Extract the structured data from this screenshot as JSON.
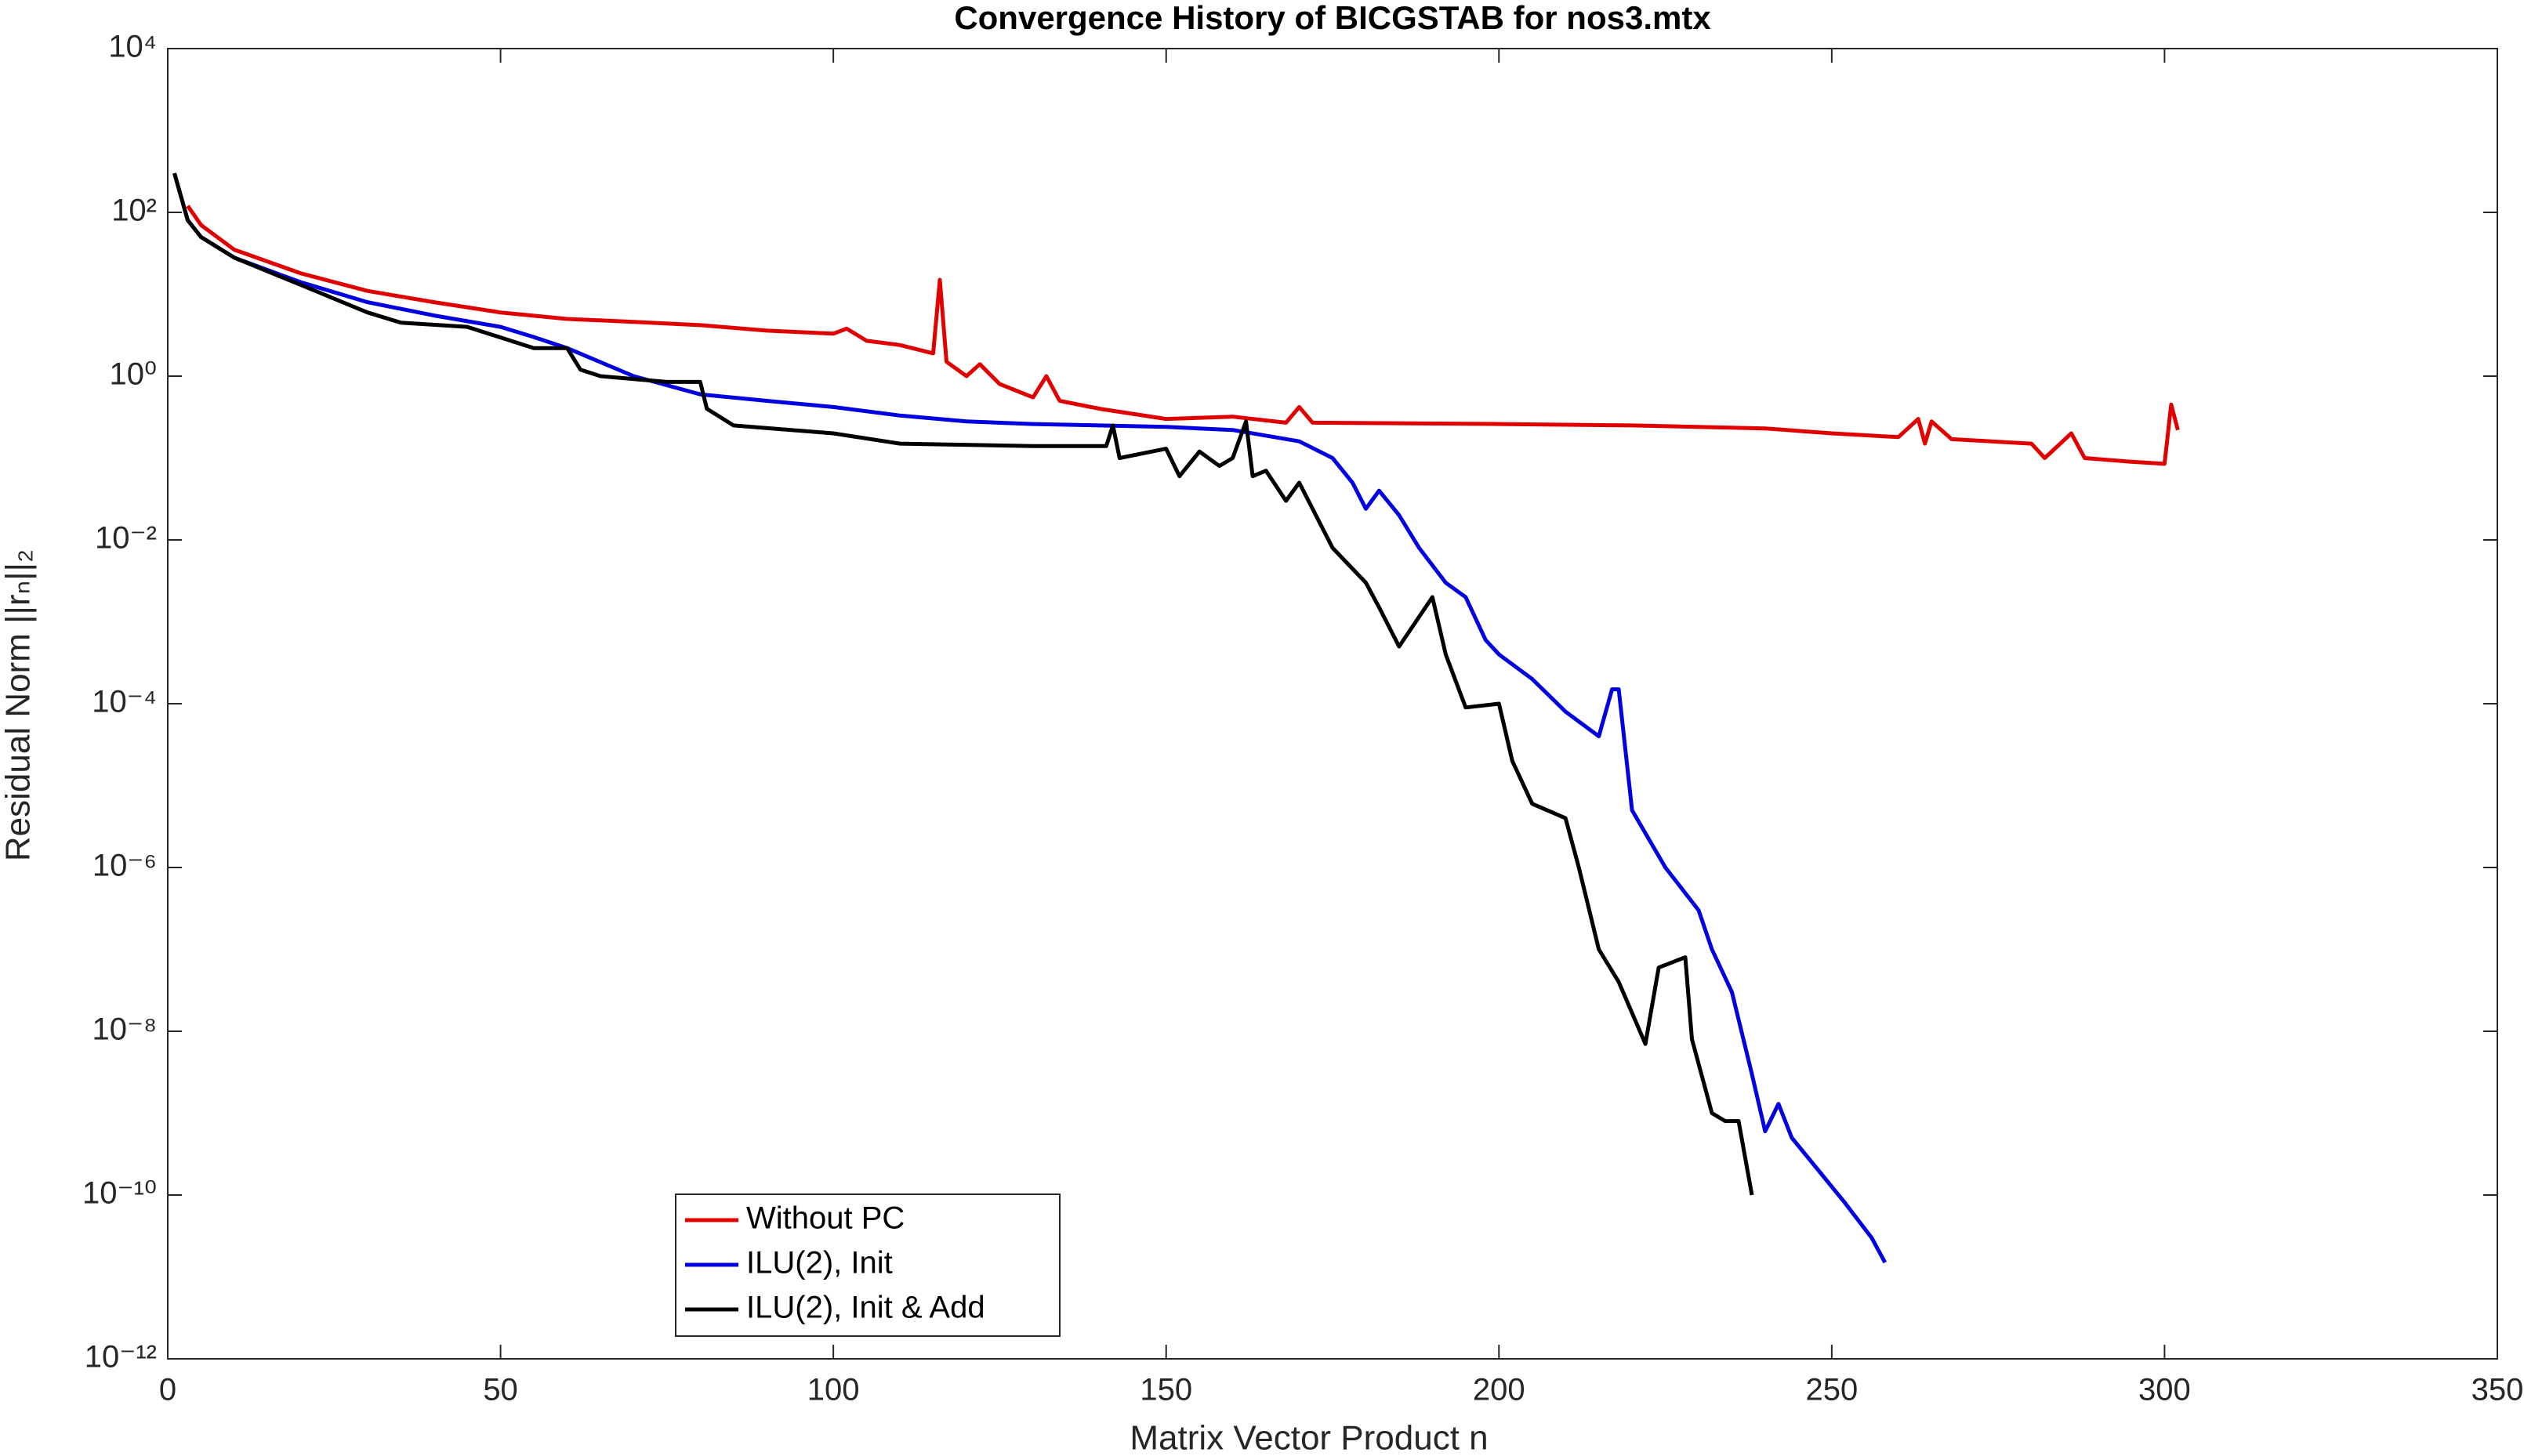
{
  "chart_data": {
    "type": "line",
    "title": "Convergence History of BICGSTAB for nos3.mtx",
    "xlabel": "Matrix Vector Product n",
    "ylabel": "Residual Norm ||rₙ||₂",
    "ylog": true,
    "xlim": [
      0,
      350
    ],
    "xticks": [
      0,
      50,
      100,
      150,
      200,
      250,
      300,
      350
    ],
    "ylim": [
      1e-12,
      10000
    ],
    "yticks": [
      {
        "value": 1e-12,
        "label": "10⁻¹²"
      },
      {
        "value": 1e-10,
        "label": "10⁻¹⁰"
      },
      {
        "value": 1e-08,
        "label": "10⁻⁸"
      },
      {
        "value": 1e-06,
        "label": "10⁻⁶"
      },
      {
        "value": 0.0001,
        "label": "10⁻⁴"
      },
      {
        "value": 0.01,
        "label": "10⁻²"
      },
      {
        "value": 1,
        "label": "10⁰"
      },
      {
        "value": 100,
        "label": "10²"
      },
      {
        "value": 10000,
        "label": "10⁴"
      }
    ],
    "legend": "lower-left",
    "series": [
      {
        "name": "Without PC",
        "color": "#e00000",
        "x": [
          3,
          5,
          10,
          20,
          30,
          40,
          50,
          60,
          70,
          80,
          90,
          100,
          102,
          105,
          110,
          115,
          116,
          117,
          120,
          122,
          125,
          130,
          132,
          134,
          140,
          150,
          160,
          168,
          170,
          172,
          200,
          220,
          240,
          250,
          260,
          263,
          264,
          265,
          268,
          280,
          282,
          286,
          288,
          295,
          300,
          301,
          302
        ],
        "values": [
          120,
          70,
          35,
          18,
          11,
          8,
          6,
          5,
          4.6,
          4.2,
          3.6,
          3.3,
          3.8,
          2.7,
          2.4,
          1.9,
          15,
          1.5,
          1.0,
          1.4,
          0.8,
          0.55,
          1.0,
          0.5,
          0.4,
          0.3,
          0.32,
          0.27,
          0.42,
          0.27,
          0.26,
          0.25,
          0.23,
          0.2,
          0.18,
          0.3,
          0.15,
          0.28,
          0.17,
          0.15,
          0.1,
          0.2,
          0.1,
          0.09,
          0.085,
          0.45,
          0.22
        ]
      },
      {
        "name": "ILU(2), Init",
        "color": "#0000e0",
        "x": [
          1,
          3,
          5,
          10,
          20,
          30,
          40,
          50,
          55,
          60,
          70,
          80,
          90,
          100,
          110,
          120,
          130,
          140,
          150,
          160,
          170,
          175,
          178,
          180,
          182,
          185,
          188,
          192,
          195,
          198,
          200,
          205,
          210,
          215,
          217,
          218,
          220,
          225,
          230,
          232,
          235,
          238,
          240,
          242,
          244,
          248,
          252,
          256,
          258
        ],
        "values": [
          300,
          80,
          50,
          28,
          14,
          8,
          5.5,
          4,
          3,
          2.2,
          1.0,
          0.6,
          0.5,
          0.42,
          0.33,
          0.28,
          0.26,
          0.25,
          0.24,
          0.22,
          0.16,
          0.1,
          0.05,
          0.024,
          0.04,
          0.02,
          0.008,
          0.003,
          0.002,
          0.0006,
          0.0004,
          0.0002,
          8e-05,
          4e-05,
          0.00015,
          0.00015,
          5e-06,
          1e-06,
          3e-07,
          1e-07,
          3e-08,
          3e-09,
          6e-10,
          1.3e-09,
          5e-10,
          2e-10,
          8e-11,
          3e-11,
          1.5e-11
        ]
      },
      {
        "name": "ILU(2), Init & Add",
        "color": "#000000",
        "x": [
          1,
          3,
          5,
          10,
          20,
          30,
          35,
          45,
          55,
          60,
          62,
          65,
          75,
          80,
          81,
          85,
          100,
          110,
          130,
          141,
          142,
          143,
          150,
          152,
          155,
          158,
          160,
          162,
          163,
          165,
          168,
          170,
          175,
          180,
          182,
          185,
          190,
          192,
          195,
          200,
          202,
          205,
          210,
          212,
          215,
          218,
          222,
          224,
          228,
          229,
          232,
          234,
          236,
          238
        ],
        "values": [
          300,
          80,
          50,
          28,
          13,
          6,
          4.5,
          4,
          2.2,
          2.2,
          1.2,
          1.0,
          0.85,
          0.85,
          0.4,
          0.25,
          0.2,
          0.15,
          0.14,
          0.14,
          0.25,
          0.1,
          0.13,
          0.06,
          0.12,
          0.08,
          0.1,
          0.28,
          0.06,
          0.07,
          0.03,
          0.05,
          0.008,
          0.003,
          0.0015,
          0.0005,
          0.002,
          0.0004,
          9e-05,
          0.0001,
          2e-05,
          6e-06,
          4e-06,
          1e-06,
          1e-07,
          4e-08,
          7e-09,
          6e-08,
          8e-08,
          8e-09,
          1e-09,
          8e-10,
          8e-10,
          1e-10
        ]
      }
    ]
  }
}
